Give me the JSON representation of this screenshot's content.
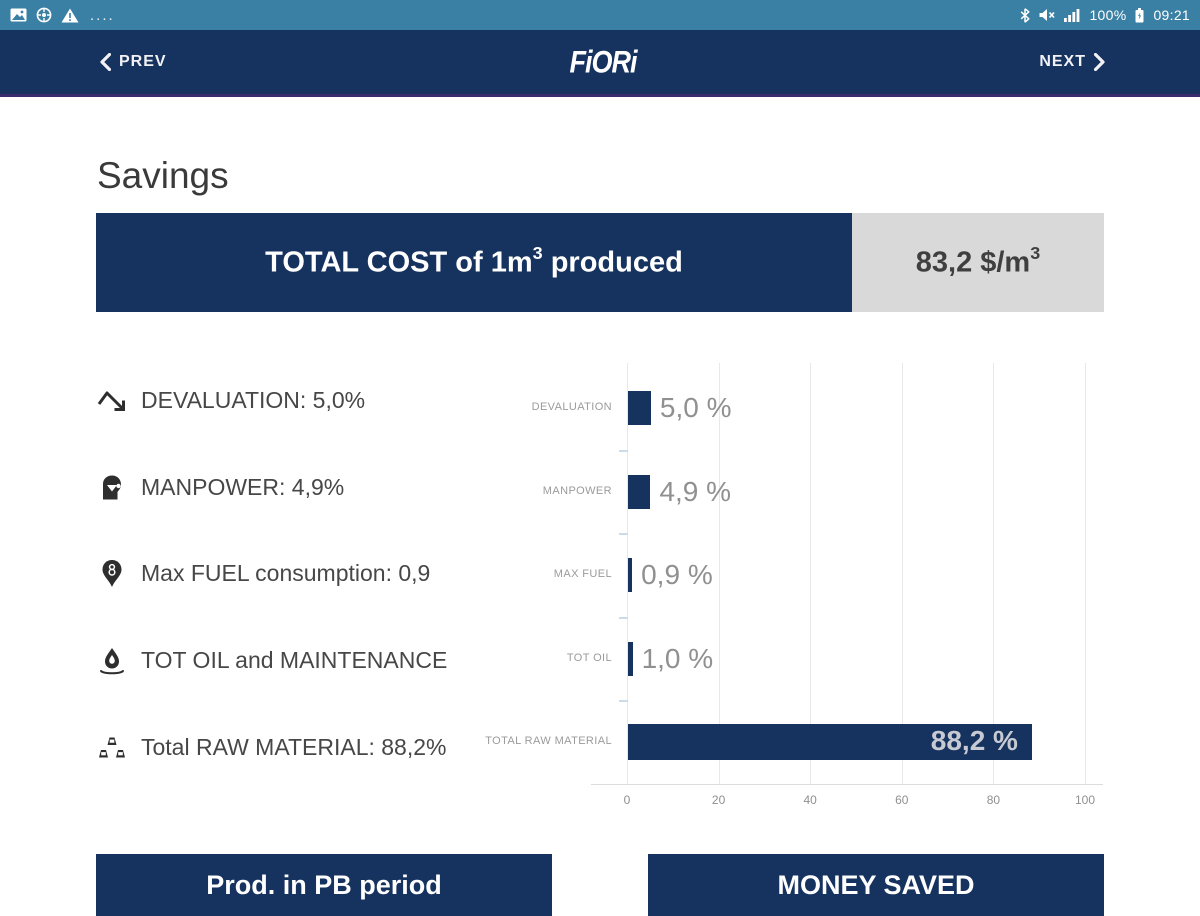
{
  "status_bar": {
    "time": "09:21",
    "battery_pct": "100%",
    "overflow_dots": "....",
    "left_icons": [
      "gallery-icon",
      "wheel-icon",
      "warning-icon"
    ],
    "right_icons": [
      "bluetooth-icon",
      "mute-icon",
      "signal-icon",
      "battery-icon"
    ]
  },
  "header": {
    "prev_label": "PREV",
    "next_label": "NEXT",
    "logo_text": "FiORi"
  },
  "page_title": "Savings",
  "total_cost": {
    "label_main": "TOTAL COST of 1m",
    "label_sup": "3",
    "label_tail": " produced",
    "value_main": "83,2 $/m",
    "value_sup": "3"
  },
  "savings_items": [
    {
      "icon": "devaluation-trend-icon",
      "label": "DEVALUATION: 5,0%"
    },
    {
      "icon": "manpower-icon",
      "label": "MANPOWER: 4,9%"
    },
    {
      "icon": "fuel-pin-icon",
      "label": "Max FUEL consumption: 0,9"
    },
    {
      "icon": "oil-drop-icon",
      "label": "TOT OIL and MAINTENANCE"
    },
    {
      "icon": "raw-material-icon",
      "label": "Total RAW MATERIAL: 88,2%"
    }
  ],
  "chart_data": {
    "type": "bar",
    "orientation": "horizontal",
    "categories": [
      "DEVALUATION",
      "MANPOWER",
      "MAX FUEL",
      "TOT OIL",
      "TOTAL RAW MATERIAL"
    ],
    "values": [
      5.0,
      4.9,
      0.9,
      1.0,
      88.2
    ],
    "value_labels": [
      "5,0 %",
      "4,9 %",
      "0,9 %",
      "1,0 %",
      "88,2 %"
    ],
    "xlim": [
      0,
      100
    ],
    "x_ticks": [
      0,
      20,
      40,
      60,
      80,
      100
    ],
    "grid": true,
    "legend": false,
    "bar_color": "#16325e"
  },
  "buttons": {
    "left_label": "Prod. in PB period",
    "right_label": "MONEY SAVED"
  },
  "colors": {
    "navy": "#16325e",
    "statusbar_teal": "#3a80a4",
    "value_box_gray": "#d9d9d9",
    "header_border_purple": "#3a2a6e",
    "bar_value_gray": "#909090"
  }
}
